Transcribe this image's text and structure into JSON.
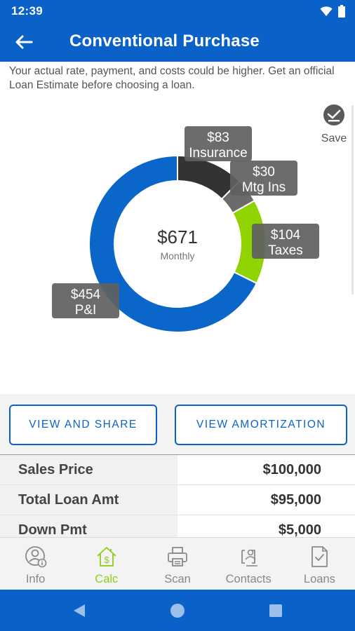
{
  "status": {
    "time": "12:39"
  },
  "header": {
    "title": "Conventional Purchase"
  },
  "disclaimer": "Your actual rate, payment, and costs could be higher. Get an official Loan Estimate before choosing a loan.",
  "save_label": "Save",
  "chart_data": {
    "type": "pie",
    "style": "donut",
    "center_value": "$671",
    "center_label": "Monthly",
    "total": 671,
    "slices": [
      {
        "value": 83,
        "amount": "$83",
        "label": "Insurance",
        "color": "#333333"
      },
      {
        "value": 30,
        "amount": "$30",
        "label": "Mtg Ins",
        "color": "#6b6b6b"
      },
      {
        "value": 104,
        "amount": "$104",
        "label": "Taxes",
        "color": "#8fd400"
      },
      {
        "value": 454,
        "amount": "$454",
        "label": "P&I",
        "color": "#0a66c9"
      }
    ]
  },
  "buttons": {
    "share": "VIEW AND SHARE",
    "amortization": "VIEW AMORTIZATION"
  },
  "table": {
    "rows": [
      {
        "label": "Sales Price",
        "value": "$100,000"
      },
      {
        "label": "Total Loan Amt",
        "value": "$95,000"
      },
      {
        "label": "Down Pmt",
        "value": "$5,000"
      }
    ]
  },
  "nav": {
    "items": [
      {
        "label": "Info",
        "icon": "person-info-icon"
      },
      {
        "label": "Calc",
        "icon": "house-dollar-icon",
        "active": true
      },
      {
        "label": "Scan",
        "icon": "printer-icon"
      },
      {
        "label": "Contacts",
        "icon": "contacts-icon"
      },
      {
        "label": "Loans",
        "icon": "document-check-icon"
      }
    ]
  },
  "colors": {
    "primary": "#0a62c9",
    "accent": "#8fcc1a"
  }
}
